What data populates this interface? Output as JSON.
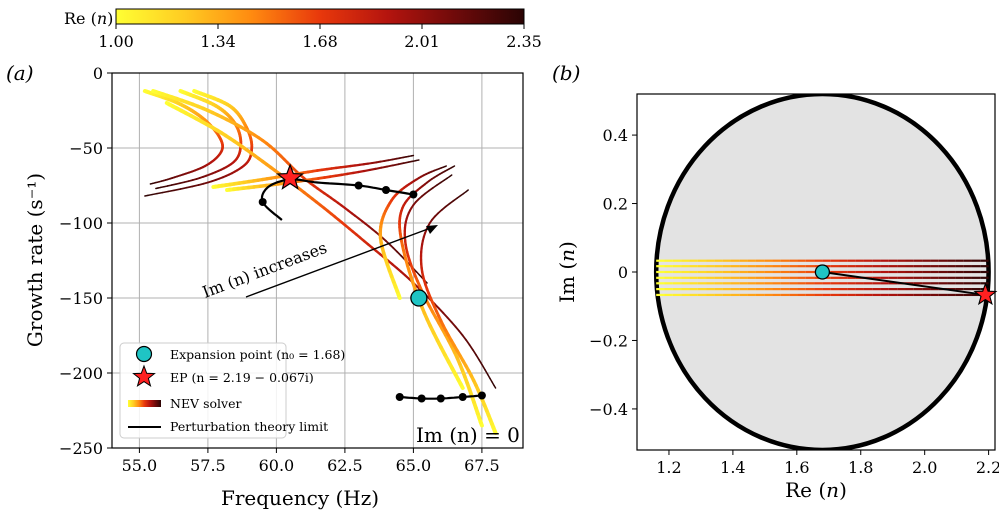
{
  "colorbar": {
    "label": "Re (n)",
    "ticks": [
      "1.00",
      "1.34",
      "1.68",
      "2.01",
      "2.35"
    ],
    "range": [
      1.0,
      2.35
    ],
    "colors": [
      "#ffff33",
      "#ffcc22",
      "#ff8a10",
      "#e8380c",
      "#b4140e",
      "#6e0a0a",
      "#2a0404"
    ]
  },
  "panel_a": {
    "tag": "(a)",
    "xlabel": "Frequency (Hz)",
    "ylabel": "Growth rate (s⁻¹)",
    "xticks": [
      "55.0",
      "57.5",
      "60.0",
      "62.5",
      "65.0",
      "67.5"
    ],
    "yticks": [
      "0",
      "−50",
      "−100",
      "−150",
      "−200",
      "−250"
    ],
    "annotation_arrow": "Im (n) increases",
    "annotation_corner": "Im (n) = 0",
    "legend": {
      "expansion": "Expansion point (n₀ = 1.68)",
      "ep": "EP (n = 2.19 − 0.067i)",
      "nev": "NEV solver",
      "pert": "Perturbation theory limit"
    }
  },
  "panel_b": {
    "tag": "(b)",
    "xlabel": "Re (n)",
    "ylabel": "Im (n)",
    "xticks": [
      "1.2",
      "1.4",
      "1.6",
      "1.8",
      "2.0",
      "2.2"
    ],
    "yticks": [
      "0.4",
      "0.2",
      "0",
      "−0.2",
      "−0.4"
    ]
  },
  "chart_data": [
    {
      "type": "line",
      "panel": "a",
      "xlabel": "Frequency (Hz)",
      "ylabel": "Growth rate (s⁻¹)",
      "xlim": [
        54,
        69
      ],
      "ylim": [
        -250,
        0
      ],
      "grid": true,
      "legend_placement": "bottom-left",
      "nev_curves": [
        {
          "re_n_range": [
            1.0,
            2.35
          ],
          "points": [
            [
              55.2,
              -12
            ],
            [
              56.4,
              -20
            ],
            [
              57.3,
              -30
            ],
            [
              57.9,
              -42
            ],
            [
              58.0,
              -52
            ],
            [
              57.4,
              -62
            ],
            [
              56.2,
              -70
            ],
            [
              55.4,
              -74
            ]
          ]
        },
        {
          "re_n_range": [
            1.0,
            2.35
          ],
          "points": [
            [
              56.5,
              -12
            ],
            [
              57.8,
              -22
            ],
            [
              58.5,
              -34
            ],
            [
              58.7,
              -48
            ],
            [
              58.4,
              -60
            ],
            [
              57.2,
              -70
            ],
            [
              55.6,
              -77
            ]
          ]
        },
        {
          "re_n_range": [
            1.0,
            2.35
          ],
          "points": [
            [
              57.0,
              -12
            ],
            [
              58.3,
              -22
            ],
            [
              58.9,
              -36
            ],
            [
              59.1,
              -50
            ],
            [
              58.8,
              -62
            ],
            [
              57.5,
              -73
            ],
            [
              55.2,
              -82
            ]
          ]
        },
        {
          "re_n_range": [
            1.0,
            2.35
          ],
          "points": [
            [
              55.5,
              -12
            ],
            [
              57.5,
              -25
            ],
            [
              59.5,
              -45
            ],
            [
              61.0,
              -70
            ],
            [
              62.5,
              -90
            ],
            [
              64.0,
              -112
            ],
            [
              65.5,
              -140
            ]
          ]
        },
        {
          "re_n_range": [
            1.0,
            2.35
          ],
          "points": [
            [
              56.0,
              -20
            ],
            [
              58.0,
              -40
            ],
            [
              59.8,
              -63
            ],
            [
              61.6,
              -88
            ],
            [
              63.2,
              -112
            ],
            [
              65.0,
              -140
            ],
            [
              66.8,
              -175
            ],
            [
              68.0,
              -210
            ]
          ]
        },
        {
          "re_n_range": [
            1.0,
            2.35
          ],
          "points": [
            [
              57.7,
              -76
            ],
            [
              59.5,
              -71
            ],
            [
              61.5,
              -65
            ],
            [
              63.5,
              -60
            ],
            [
              65.0,
              -55
            ]
          ]
        },
        {
          "re_n_range": [
            1.0,
            2.35
          ],
          "points": [
            [
              58.2,
              -78
            ],
            [
              60.5,
              -73
            ],
            [
              63.0,
              -66
            ],
            [
              65.2,
              -58
            ]
          ]
        },
        {
          "re_n_range": [
            1.0,
            2.35
          ],
          "points": [
            [
              64.5,
              -150
            ],
            [
              63.8,
              -110
            ],
            [
              64.2,
              -85
            ],
            [
              65.2,
              -70
            ],
            [
              66.2,
              -62
            ]
          ]
        },
        {
          "re_n_range": [
            1.0,
            2.35
          ],
          "points": [
            [
              66.8,
              -210
            ],
            [
              65.4,
              -160
            ],
            [
              64.6,
              -115
            ],
            [
              64.6,
              -90
            ],
            [
              65.5,
              -73
            ],
            [
              66.5,
              -62
            ]
          ]
        },
        {
          "re_n_range": [
            1.0,
            2.35
          ],
          "points": [
            [
              67.5,
              -235
            ],
            [
              66.6,
              -190
            ],
            [
              65.3,
              -145
            ],
            [
              64.7,
              -112
            ],
            [
              65.0,
              -88
            ],
            [
              66.4,
              -68
            ]
          ]
        },
        {
          "re_n_range": [
            1.0,
            2.35
          ],
          "points": [
            [
              68.0,
              -240
            ],
            [
              67.2,
              -205
            ],
            [
              66.0,
              -165
            ],
            [
              65.3,
              -130
            ],
            [
              65.6,
              -100
            ],
            [
              67.0,
              -78
            ]
          ]
        }
      ],
      "perturbation_upper": {
        "points": [
          [
            60.2,
            -98
          ],
          [
            59.5,
            -86
          ],
          [
            59.7,
            -76
          ],
          [
            60.5,
            -71
          ],
          [
            61.5,
            -73
          ],
          [
            63.0,
            -75
          ],
          [
            64.0,
            -78
          ],
          [
            65.0,
            -81
          ]
        ],
        "dots": [
          [
            59.5,
            -86
          ],
          [
            63.0,
            -75
          ],
          [
            64.0,
            -78
          ],
          [
            65.0,
            -81
          ]
        ]
      },
      "perturbation_lower": {
        "points": [
          [
            64.5,
            -216
          ],
          [
            65.3,
            -217
          ],
          [
            66.0,
            -217
          ],
          [
            66.8,
            -216
          ],
          [
            67.5,
            -215
          ]
        ],
        "dots": [
          [
            64.5,
            -216
          ],
          [
            65.3,
            -217
          ],
          [
            66.0,
            -217
          ],
          [
            66.8,
            -216
          ],
          [
            67.5,
            -215
          ]
        ]
      },
      "expansion_point": [
        65.2,
        -150
      ],
      "exceptional_point": [
        60.5,
        -70
      ]
    },
    {
      "type": "scatter",
      "panel": "b",
      "xlabel": "Re (n)",
      "ylabel": "Im (n)",
      "xlim": [
        1.1,
        2.22
      ],
      "ylim": [
        -0.52,
        0.52
      ],
      "circle_center": [
        1.68,
        0
      ],
      "circle_radius": 0.52,
      "sample_rows_im": [
        0.033,
        0.017,
        0.0,
        -0.017,
        -0.033,
        -0.05,
        -0.067
      ],
      "re_range": [
        1.16,
        2.2
      ],
      "expansion_point": [
        1.68,
        0.0
      ],
      "exceptional_point": [
        2.19,
        -0.067
      ]
    }
  ]
}
